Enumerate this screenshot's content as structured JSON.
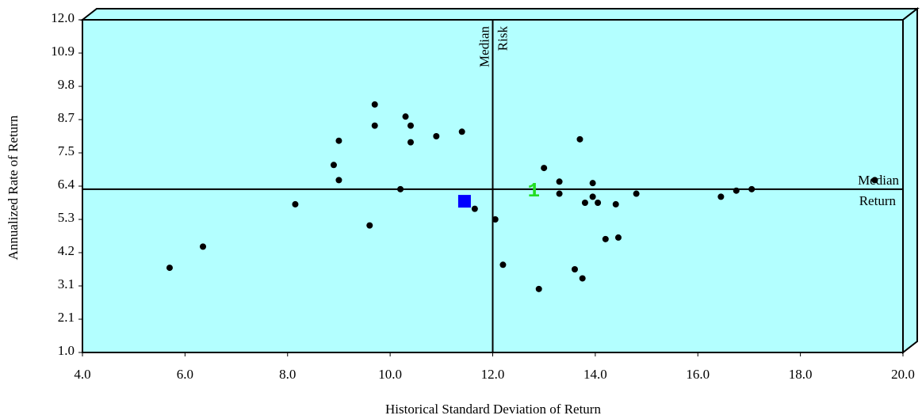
{
  "chart_data": {
    "type": "scatter",
    "title": "",
    "xlabel": "Historical Standard Deviation of Return",
    "ylabel": "Annualized Rate of Return",
    "xlim": [
      4.0,
      20.0
    ],
    "ylim": [
      1.0,
      12.0
    ],
    "x_ticks": [
      "4.0",
      "6.0",
      "8.0",
      "10.0",
      "12.0",
      "14.0",
      "16.0",
      "18.0",
      "20.0"
    ],
    "y_ticks": [
      "1.0",
      "2.1",
      "3.1",
      "4.2",
      "5.3",
      "6.4",
      "7.5",
      "8.7",
      "9.8",
      "10.9",
      "12.0"
    ],
    "grid": false,
    "background_color": "#b3ffff",
    "median_risk": {
      "value": 12.0,
      "label_line1": "Median",
      "label_line2": "Risk"
    },
    "median_return": {
      "value": 6.4,
      "label_line1": "Median",
      "label_line2": "Return"
    },
    "series": [
      {
        "marker": "dot",
        "color": "#000000",
        "points": [
          {
            "x": 5.7,
            "y": 3.8
          },
          {
            "x": 6.35,
            "y": 4.5
          },
          {
            "x": 8.15,
            "y": 5.9
          },
          {
            "x": 8.9,
            "y": 7.2
          },
          {
            "x": 9.0,
            "y": 8.0
          },
          {
            "x": 9.0,
            "y": 6.7
          },
          {
            "x": 9.6,
            "y": 5.2
          },
          {
            "x": 9.7,
            "y": 9.2
          },
          {
            "x": 9.7,
            "y": 8.5
          },
          {
            "x": 10.2,
            "y": 6.4
          },
          {
            "x": 10.3,
            "y": 8.8
          },
          {
            "x": 10.4,
            "y": 8.5
          },
          {
            "x": 10.4,
            "y": 7.95
          },
          {
            "x": 10.9,
            "y": 8.15
          },
          {
            "x": 11.4,
            "y": 8.3
          },
          {
            "x": 11.65,
            "y": 5.75
          },
          {
            "x": 12.05,
            "y": 5.4
          },
          {
            "x": 12.2,
            "y": 3.9
          },
          {
            "x": 12.9,
            "y": 3.1
          },
          {
            "x": 13.0,
            "y": 7.1
          },
          {
            "x": 13.3,
            "y": 6.65
          },
          {
            "x": 13.3,
            "y": 6.25
          },
          {
            "x": 13.6,
            "y": 3.75
          },
          {
            "x": 13.7,
            "y": 8.05
          },
          {
            "x": 13.75,
            "y": 3.45
          },
          {
            "x": 13.8,
            "y": 5.95
          },
          {
            "x": 13.95,
            "y": 6.6
          },
          {
            "x": 13.95,
            "y": 6.15
          },
          {
            "x": 14.05,
            "y": 5.95
          },
          {
            "x": 14.2,
            "y": 4.75
          },
          {
            "x": 14.4,
            "y": 5.9
          },
          {
            "x": 14.45,
            "y": 4.8
          },
          {
            "x": 14.8,
            "y": 6.25
          },
          {
            "x": 16.45,
            "y": 6.15
          },
          {
            "x": 16.75,
            "y": 6.35
          },
          {
            "x": 17.05,
            "y": 6.4
          },
          {
            "x": 19.45,
            "y": 6.7
          }
        ]
      },
      {
        "marker": "square",
        "color": "#0000ff",
        "points": [
          {
            "x": 11.45,
            "y": 6.0
          }
        ]
      },
      {
        "marker": "text",
        "color": "#22dd22",
        "label": "1",
        "points": [
          {
            "x": 12.8,
            "y": 6.4
          }
        ]
      }
    ]
  }
}
